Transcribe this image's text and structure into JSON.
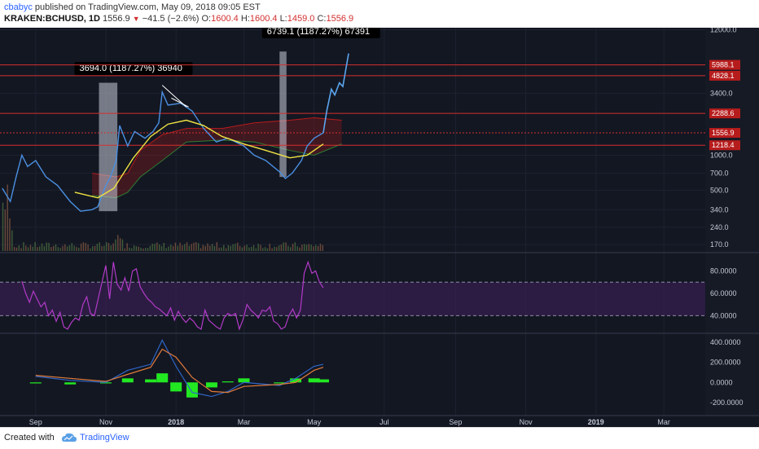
{
  "header": {
    "author": "cbabyc",
    "published": " published on TradingView.com, May 09, 2018 09:05 EST",
    "symbol": "KRAKEN:BCHUSD, 1D",
    "price": "1556.9",
    "arrow": "▼",
    "change": "−41.5 (−2.6%)",
    "o_label": "O:",
    "o": "1600.4",
    "h_label": "H:",
    "h": "1600.4",
    "l_label": "L:",
    "l": "1459.0",
    "c_label": "C:",
    "c": "1556.9"
  },
  "footer": {
    "created": "Created with",
    "brand": "TradingView"
  },
  "colors": {
    "bg": "#131722",
    "grid": "#1e2230",
    "price": "#4a90e2",
    "ma": "#f0e442",
    "cloud_red": "#b71c1c",
    "cloud_green": "#2e7d32",
    "hline": "#d32f2f",
    "rsi": "#b23ac8",
    "macd": "#2f66c8",
    "signal": "#e07b3a",
    "hist": "#22e822",
    "volume": "#5d4037"
  },
  "chart_data": [
    {
      "type": "line",
      "name": "price",
      "yscale": "log",
      "ylim": [
        150,
        12500
      ],
      "x": [
        "2017-08-03",
        "2017-08-10",
        "2017-08-15",
        "2017-08-20",
        "2017-08-25",
        "2017-09-01",
        "2017-09-10",
        "2017-09-20",
        "2017-10-01",
        "2017-10-10",
        "2017-10-20",
        "2017-10-25",
        "2017-11-01",
        "2017-11-05",
        "2017-11-10",
        "2017-11-13",
        "2017-11-20",
        "2017-11-26",
        "2017-12-05",
        "2017-12-12",
        "2017-12-17",
        "2017-12-20",
        "2017-12-25",
        "2018-01-05",
        "2018-01-15",
        "2018-01-25",
        "2018-02-05",
        "2018-02-15",
        "2018-03-01",
        "2018-03-10",
        "2018-03-20",
        "2018-04-01",
        "2018-04-06",
        "2018-04-12",
        "2018-04-20",
        "2018-04-25",
        "2018-05-01",
        "2018-05-09"
      ],
      "y": [
        520,
        400,
        650,
        1000,
        800,
        900,
        650,
        550,
        400,
        330,
        340,
        360,
        550,
        650,
        900,
        1800,
        1200,
        1600,
        1400,
        1600,
        1900,
        3500,
        2700,
        2800,
        2400,
        1700,
        1300,
        1400,
        1200,
        1000,
        900,
        720,
        630,
        700,
        900,
        1200,
        1400,
        1557
      ],
      "projection_x": [
        "2018-05-09",
        "2018-05-12",
        "2018-05-16",
        "2018-05-19",
        "2018-05-23",
        "2018-05-26",
        "2018-05-31"
      ],
      "projection_y": [
        1557,
        2400,
        3700,
        3300,
        4200,
        3900,
        7500
      ],
      "price_ticks": [
        "12000.0",
        "3400.0",
        "1000.0",
        "700.0",
        "500.0",
        "340.0",
        "240.0",
        "170.0"
      ],
      "price_tick_values": [
        12000,
        3400,
        1000,
        700,
        500,
        340,
        240,
        170
      ],
      "levels": [
        {
          "label": "5988.1",
          "value": 5988.1,
          "style": "solid"
        },
        {
          "label": "4828.1",
          "value": 4828.1,
          "style": "solid"
        },
        {
          "label": "2288.6",
          "value": 2288.6,
          "style": "solid"
        },
        {
          "label": "1556.9",
          "value": 1556.9,
          "style": "dotted"
        },
        {
          "label": "1218.4",
          "value": 1218.4,
          "style": "solid"
        }
      ],
      "measurements": [
        {
          "label": "3694.0 (1187.27%) 36940",
          "from": "2017-10-26",
          "to": "2017-11-11",
          "low": 330,
          "high": 4200
        },
        {
          "label": "6739.1 (1187.27%) 67391",
          "from": "2018-04-01",
          "to": "2018-04-07",
          "low": 650,
          "high": 7800
        }
      ],
      "xaxis": [
        "Sep",
        "Nov",
        "2018",
        "Mar",
        "May",
        "Jul",
        "Sep",
        "Nov",
        "2019",
        "Mar"
      ],
      "xaxis_dates": [
        "2017-09-01",
        "2017-11-01",
        "2018-01-01",
        "2018-03-01",
        "2018-05-01",
        "2018-07-01",
        "2018-09-01",
        "2018-11-01",
        "2019-01-01",
        "2019-03-01"
      ]
    },
    {
      "type": "line",
      "name": "RSI",
      "ylim": [
        25,
        95
      ],
      "y": [
        71,
        60,
        52,
        62,
        55,
        48,
        52,
        40,
        45,
        35,
        43,
        30,
        28,
        34,
        38,
        36,
        50,
        57,
        42,
        40,
        55,
        70,
        85,
        55,
        88,
        68,
        63,
        74,
        62,
        80,
        82,
        66,
        60,
        55,
        52,
        48,
        46,
        43,
        40,
        47,
        36,
        44,
        38,
        34,
        38,
        35,
        30,
        28,
        45,
        36,
        33,
        30,
        28,
        38,
        42,
        40,
        42,
        28,
        37,
        50,
        45,
        42,
        38,
        45,
        44,
        48,
        35,
        33,
        28,
        30,
        40,
        46,
        38,
        45,
        78,
        88,
        78,
        80,
        70,
        65
      ],
      "band": [
        40,
        70
      ],
      "ticks": [
        "80.0000",
        "60.0000",
        "40.0000"
      ],
      "tick_values": [
        80,
        60,
        40
      ]
    },
    {
      "type": "bar",
      "name": "MACD",
      "ylim": [
        -330,
        480
      ],
      "ticks": [
        "400.0000",
        "200.0000",
        "0.0000",
        "-200.0000"
      ],
      "tick_values": [
        400,
        200,
        0,
        -200
      ],
      "macd_x": [
        "2017-09-01",
        "2017-10-01",
        "2017-11-01",
        "2017-11-20",
        "2017-12-10",
        "2017-12-20",
        "2018-01-01",
        "2018-01-15",
        "2018-02-01",
        "2018-02-15",
        "2018-03-01",
        "2018-04-01",
        "2018-04-15",
        "2018-05-01",
        "2018-05-09"
      ],
      "macd": [
        60,
        20,
        0,
        120,
        180,
        420,
        160,
        -100,
        -140,
        -90,
        0,
        -30,
        40,
        160,
        180
      ],
      "signal": [
        70,
        40,
        10,
        80,
        150,
        330,
        250,
        50,
        -90,
        -100,
        -40,
        -20,
        0,
        120,
        150
      ],
      "hist": [
        -10,
        -20,
        -10,
        40,
        30,
        90,
        -90,
        -150,
        -50,
        10,
        40,
        -10,
        40,
        40,
        30
      ]
    }
  ]
}
